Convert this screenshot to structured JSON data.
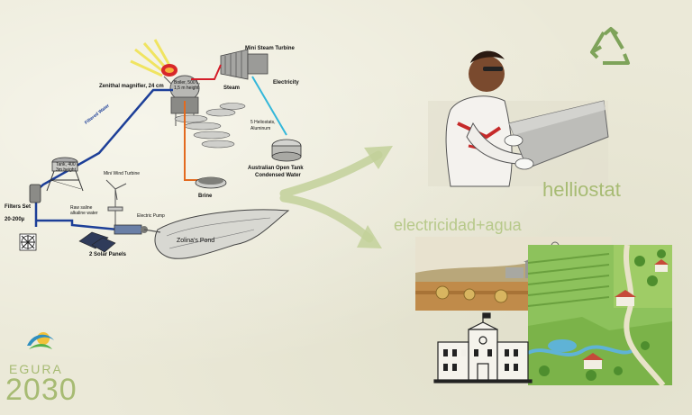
{
  "diagram": {
    "labels": {
      "mini_steam_turbine": "Mini Steam Turbine",
      "steam": "Steam",
      "electricity": "Electricity",
      "zenithal_magnifier": "Zenithal magnifier, 24 cm",
      "boiler": "Boiler, 500 L,",
      "boiler_height": "1,5 m height",
      "heliostats": "5 Heliostats,",
      "heliostats_material": "Aluminum",
      "filtered_water": "Filtered Water",
      "tank": "Tank, 400 L",
      "tank_height": "3m height",
      "australian_tank": "Australian Open Tank",
      "condensed_water": "Condensed Water",
      "filters_set": "Filters Set",
      "filters_range": "20-200µ",
      "mini_wind_turbine": "Mini Wind Turbine",
      "brine": "Brine",
      "raw_water": "Raw saline",
      "raw_water_2": "alkaline water",
      "electric_pump": "Electric Pump",
      "zolinas_pond": "Zolina's Pond",
      "solar_panels": "2 Solar Panels"
    }
  },
  "right": {
    "helliostat": "helliostat",
    "electricidad_agua": "electricidad+agua"
  },
  "logo": {
    "name": "EGURA",
    "year": "2030"
  },
  "colors": {
    "accent_green": "#a7bb73",
    "blue_pipe": "#1d3f98",
    "cyan_pipe": "#33b7da",
    "orange_pipe": "#e36a1f",
    "red_pipe": "#d41e2a"
  },
  "icons": [
    "recycle-icon",
    "sun-icon",
    "fan-icon",
    "wind-turbine-icon",
    "solar-panel-icon",
    "worker-illustration",
    "farm-illustration",
    "map-illustration",
    "school-building-illustration",
    "arrow-icon"
  ]
}
